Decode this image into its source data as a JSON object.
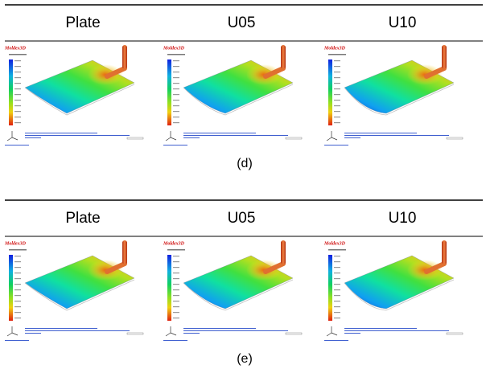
{
  "figures": [
    {
      "columns": [
        "Plate",
        "U05",
        "U10"
      ],
      "logo": "Moldex3D",
      "caption": "(d)"
    },
    {
      "columns": [
        "Plate",
        "U05",
        "U10"
      ],
      "logo": "Moldex3D",
      "caption": "(e)"
    }
  ]
}
